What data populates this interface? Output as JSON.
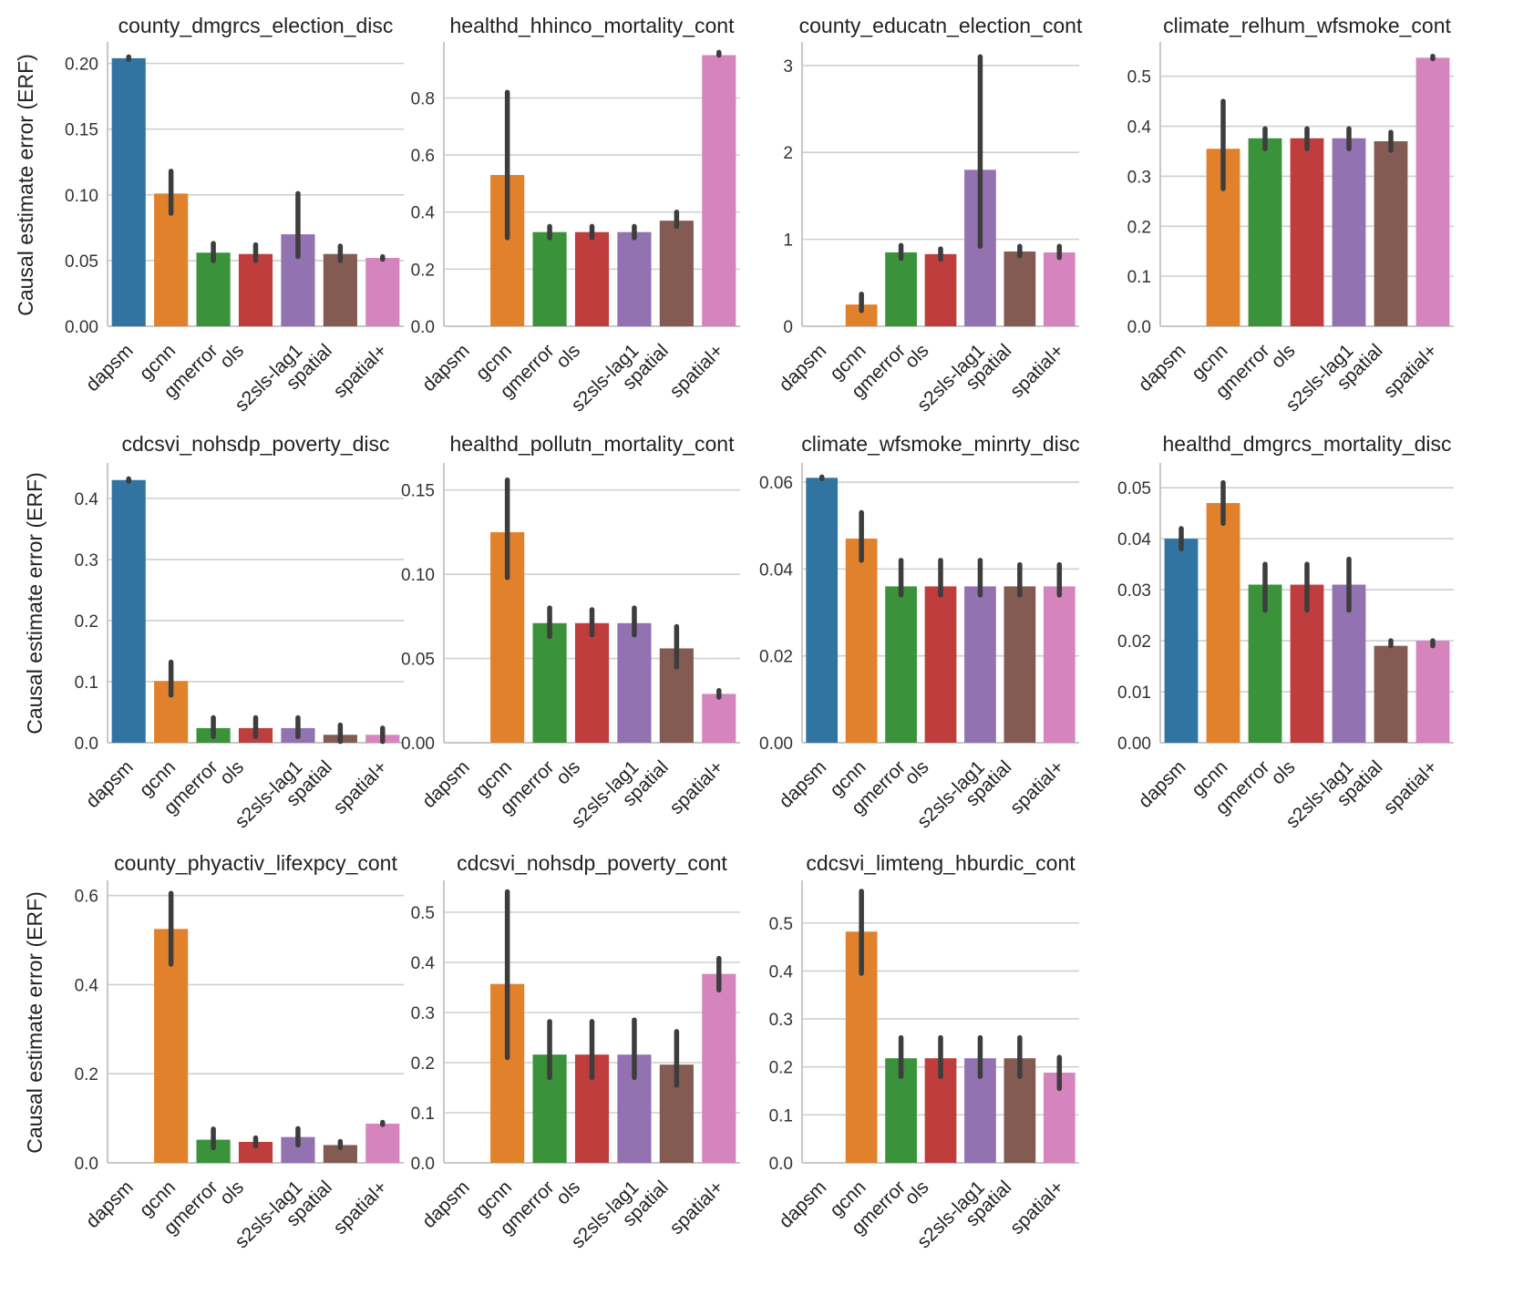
{
  "chart_data": {
    "type": "bar",
    "figure_ylabel": "Causal estimate error (ERF)",
    "categories": [
      "dapsm",
      "gcnn",
      "gmerror",
      "ols",
      "s2sls-lag1",
      "spatial",
      "spatial+"
    ],
    "colors": {
      "dapsm": "#3274a1",
      "gcnn": "#e1812c",
      "gmerror": "#3a923a",
      "ols": "#c03d3e",
      "s2sls-lag1": "#9372b2",
      "spatial": "#845b53",
      "spatial+": "#d684bd"
    },
    "panels": [
      {
        "title": "county_dmgrcs_election_disc",
        "yticks": [
          "0.00",
          "0.05",
          "0.10",
          "0.15",
          "0.20"
        ],
        "ymax": 0.215,
        "values": [
          0.204,
          0.101,
          0.056,
          0.055,
          0.07,
          0.055,
          0.052
        ],
        "ci": [
          [
            0.203,
            0.205
          ],
          [
            0.086,
            0.118
          ],
          [
            0.05,
            0.063
          ],
          [
            0.05,
            0.062
          ],
          [
            0.053,
            0.101
          ],
          [
            0.05,
            0.061
          ],
          [
            0.051,
            0.053
          ]
        ]
      },
      {
        "title": "healthd_hhinco_mortality_cont",
        "yticks": [
          "0.0",
          "0.2",
          "0.4",
          "0.6",
          "0.8"
        ],
        "ymax": 0.99,
        "values": [
          null,
          0.53,
          0.33,
          0.33,
          0.33,
          0.37,
          0.95
        ],
        "ci": [
          null,
          [
            0.31,
            0.82
          ],
          [
            0.31,
            0.35
          ],
          [
            0.31,
            0.35
          ],
          [
            0.31,
            0.35
          ],
          [
            0.35,
            0.4
          ],
          [
            0.95,
            0.96
          ]
        ]
      },
      {
        "title": "county_educatn_election_cont",
        "yticks": [
          "0",
          "1",
          "2",
          "3"
        ],
        "ymax": 3.25,
        "values": [
          null,
          0.25,
          0.85,
          0.83,
          1.8,
          0.86,
          0.85
        ],
        "ci": [
          null,
          [
            0.18,
            0.37
          ],
          [
            0.78,
            0.93
          ],
          [
            0.77,
            0.89
          ],
          [
            0.92,
            3.1
          ],
          [
            0.81,
            0.92
          ],
          [
            0.79,
            0.92
          ]
        ]
      },
      {
        "title": "climate_relhum_wfsmoke_cont",
        "yticks": [
          "0.0",
          "0.1",
          "0.2",
          "0.3",
          "0.4",
          "0.5"
        ],
        "ymax": 0.565,
        "values": [
          null,
          0.355,
          0.376,
          0.376,
          0.376,
          0.37,
          0.537
        ],
        "ci": [
          null,
          [
            0.275,
            0.45
          ],
          [
            0.355,
            0.395
          ],
          [
            0.355,
            0.395
          ],
          [
            0.355,
            0.395
          ],
          [
            0.352,
            0.388
          ],
          [
            0.535,
            0.54
          ]
        ]
      },
      {
        "title": "cdcsvi_nohsdp_poverty_disc",
        "yticks": [
          "0.0",
          "0.1",
          "0.2",
          "0.3",
          "0.4"
        ],
        "ymax": 0.455,
        "values": [
          0.43,
          0.101,
          0.024,
          0.024,
          0.024,
          0.013,
          0.013
        ],
        "ci": [
          [
            0.428,
            0.432
          ],
          [
            0.078,
            0.132
          ],
          [
            0.01,
            0.041
          ],
          [
            0.01,
            0.041
          ],
          [
            0.01,
            0.041
          ],
          [
            0.002,
            0.029
          ],
          [
            0.002,
            0.024
          ]
        ]
      },
      {
        "title": "healthd_pollutn_mortality_cont",
        "yticks": [
          "0.00",
          "0.05",
          "0.10",
          "0.15"
        ],
        "ymax": 0.165,
        "values": [
          null,
          0.125,
          0.071,
          0.071,
          0.071,
          0.056,
          0.029
        ],
        "ci": [
          null,
          [
            0.098,
            0.156
          ],
          [
            0.063,
            0.08
          ],
          [
            0.064,
            0.079
          ],
          [
            0.064,
            0.08
          ],
          [
            0.045,
            0.069
          ],
          [
            0.027,
            0.031
          ]
        ]
      },
      {
        "title": "climate_wfsmoke_minrty_disc",
        "yticks": [
          "0.00",
          "0.02",
          "0.04",
          "0.06"
        ],
        "ymax": 0.064,
        "values": [
          0.061,
          0.047,
          0.036,
          0.036,
          0.036,
          0.036,
          0.036
        ],
        "ci": [
          [
            0.0608,
            0.0612
          ],
          [
            0.042,
            0.053
          ],
          [
            0.034,
            0.042
          ],
          [
            0.034,
            0.042
          ],
          [
            0.034,
            0.042
          ],
          [
            0.034,
            0.041
          ],
          [
            0.034,
            0.041
          ]
        ]
      },
      {
        "title": "healthd_dmgrcs_mortality_disc",
        "yticks": [
          "0.00",
          "0.01",
          "0.02",
          "0.03",
          "0.04",
          "0.05"
        ],
        "ymax": 0.0545,
        "values": [
          0.04,
          0.047,
          0.031,
          0.031,
          0.031,
          0.019,
          0.02
        ],
        "ci": [
          [
            0.038,
            0.042
          ],
          [
            0.043,
            0.051
          ],
          [
            0.026,
            0.035
          ],
          [
            0.026,
            0.035
          ],
          [
            0.026,
            0.036
          ],
          [
            0.019,
            0.02
          ],
          [
            0.019,
            0.02
          ]
        ]
      },
      {
        "title": "county_phyactiv_lifexpcy_cont",
        "yticks": [
          "0.0",
          "0.2",
          "0.4",
          "0.6"
        ],
        "ymax": 0.63,
        "values": [
          null,
          0.525,
          0.052,
          0.047,
          0.058,
          0.04,
          0.088
        ],
        "ci": [
          null,
          [
            0.446,
            0.605
          ],
          [
            0.034,
            0.076
          ],
          [
            0.038,
            0.056
          ],
          [
            0.04,
            0.077
          ],
          [
            0.034,
            0.048
          ],
          [
            0.086,
            0.091
          ]
        ]
      },
      {
        "title": "cdcsvi_nohsdp_poverty_cont",
        "yticks": [
          "0.0",
          "0.1",
          "0.2",
          "0.3",
          "0.4",
          "0.5"
        ],
        "ymax": 0.56,
        "values": [
          null,
          0.357,
          0.216,
          0.216,
          0.216,
          0.196,
          0.377
        ],
        "ci": [
          null,
          [
            0.21,
            0.541
          ],
          [
            0.17,
            0.282
          ],
          [
            0.17,
            0.282
          ],
          [
            0.17,
            0.285
          ],
          [
            0.155,
            0.262
          ],
          [
            0.345,
            0.408
          ]
        ]
      },
      {
        "title": "cdcsvi_limteng_hburdic_cont",
        "yticks": [
          "0.0",
          "0.1",
          "0.2",
          "0.3",
          "0.4",
          "0.5"
        ],
        "ymax": 0.585,
        "values": [
          null,
          0.482,
          0.218,
          0.218,
          0.218,
          0.218,
          0.188
        ],
        "ci": [
          null,
          [
            0.395,
            0.566
          ],
          [
            0.18,
            0.261
          ],
          [
            0.18,
            0.261
          ],
          [
            0.18,
            0.261
          ],
          [
            0.18,
            0.261
          ],
          [
            0.155,
            0.22
          ]
        ]
      }
    ]
  }
}
